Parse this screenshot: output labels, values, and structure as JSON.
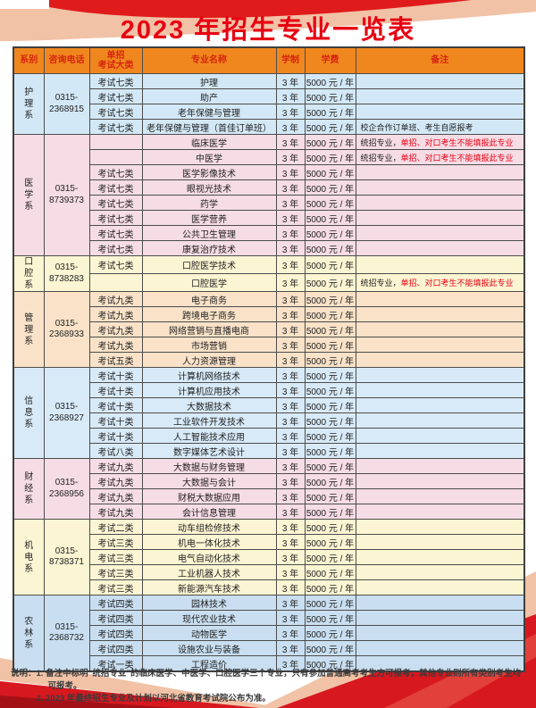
{
  "title": "2023 年招生专业一览表",
  "colors": {
    "accent_red": "#e60012",
    "header_orange": "#f0871e",
    "header_text_red": "#d5250f",
    "salmon_deco": "#f1c2a6",
    "deco_red": "#d7181f"
  },
  "table": {
    "headers": {
      "dept": "系别",
      "phone": "咨询电话",
      "exam_line1": "单招",
      "exam_line2": "考试大类",
      "major": "专业名称",
      "years": "学制",
      "fee": "学费",
      "remark": "备注"
    },
    "sections": [
      {
        "dept": "护理系",
        "phone": "0315-2368915",
        "color": "#d3e8f6",
        "rows": [
          {
            "exam": "考试七类",
            "major": "护理",
            "years": "3 年",
            "fee": "5000 元 / 年",
            "remark": "",
            "remark_red": ""
          },
          {
            "exam": "考试七类",
            "major": "助产",
            "years": "3 年",
            "fee": "5000 元 / 年",
            "remark": "",
            "remark_red": ""
          },
          {
            "exam": "考试七类",
            "major": "老年保健与管理",
            "years": "3 年",
            "fee": "5000 元 / 年",
            "remark": "",
            "remark_red": ""
          },
          {
            "exam": "考试七类",
            "major": "老年保健与管理（首佳订单班）",
            "years": "3 年",
            "fee": "5000 元 / 年",
            "remark": "校企合作订单班、考生自愿报考",
            "remark_red": ""
          }
        ]
      },
      {
        "dept": "医学系",
        "phone": "0315-8739373",
        "color": "#f6dce5",
        "rows": [
          {
            "exam": "",
            "major": "临床医学",
            "years": "3 年",
            "fee": "5000 元 / 年",
            "remark": "统招专业，",
            "remark_red": "单招、对口考生不能填报此专业"
          },
          {
            "exam": "",
            "major": "中医学",
            "years": "3 年",
            "fee": "5000 元 / 年",
            "remark": "统招专业，",
            "remark_red": "单招、对口考生不能填报此专业"
          },
          {
            "exam": "考试七类",
            "major": "医学影像技术",
            "years": "3 年",
            "fee": "5000 元 / 年",
            "remark": "",
            "remark_red": ""
          },
          {
            "exam": "考试七类",
            "major": "眼视光技术",
            "years": "3 年",
            "fee": "5000 元 / 年",
            "remark": "",
            "remark_red": ""
          },
          {
            "exam": "考试七类",
            "major": "药学",
            "years": "3 年",
            "fee": "5000 元 / 年",
            "remark": "",
            "remark_red": ""
          },
          {
            "exam": "考试七类",
            "major": "医学营养",
            "years": "3 年",
            "fee": "5000 元 / 年",
            "remark": "",
            "remark_red": ""
          },
          {
            "exam": "考试七类",
            "major": "公共卫生管理",
            "years": "3 年",
            "fee": "5000 元 / 年",
            "remark": "",
            "remark_red": ""
          },
          {
            "exam": "考试七类",
            "major": "康复治疗技术",
            "years": "3 年",
            "fee": "5000 元 / 年",
            "remark": "",
            "remark_red": ""
          }
        ]
      },
      {
        "dept": "口腔系",
        "phone": "0315-8738283",
        "color": "#fcf5d3",
        "rows": [
          {
            "exam": "考试七类",
            "major": "口腔医学技术",
            "years": "3 年",
            "fee": "5000 元 / 年",
            "remark": "",
            "remark_red": ""
          },
          {
            "exam": "",
            "major": "口腔医学",
            "years": "3 年",
            "fee": "5000 元 / 年",
            "remark": "统招专业，",
            "remark_red": "单招、对口考生不能填报此专业"
          }
        ]
      },
      {
        "dept": "管理系",
        "phone": "0315-2368933",
        "color": "#f9e2c8",
        "rows": [
          {
            "exam": "考试九类",
            "major": "电子商务",
            "years": "3 年",
            "fee": "5000 元 / 年",
            "remark": "",
            "remark_red": ""
          },
          {
            "exam": "考试九类",
            "major": "跨境电子商务",
            "years": "3 年",
            "fee": "5000 元 / 年",
            "remark": "",
            "remark_red": ""
          },
          {
            "exam": "考试九类",
            "major": "网络营销与直播电商",
            "years": "3 年",
            "fee": "5000 元 / 年",
            "remark": "",
            "remark_red": ""
          },
          {
            "exam": "考试九类",
            "major": "市场营销",
            "years": "3 年",
            "fee": "5000 元 / 年",
            "remark": "",
            "remark_red": ""
          },
          {
            "exam": "考试五类",
            "major": "人力资源管理",
            "years": "3 年",
            "fee": "5000 元 / 年",
            "remark": "",
            "remark_red": ""
          }
        ]
      },
      {
        "dept": "信息系",
        "phone": "0315-2368927",
        "color": "#d8eaf8",
        "rows": [
          {
            "exam": "考试十类",
            "major": "计算机网络技术",
            "years": "3 年",
            "fee": "5000 元 / 年",
            "remark": "",
            "remark_red": ""
          },
          {
            "exam": "考试十类",
            "major": "计算机应用技术",
            "years": "3 年",
            "fee": "5000 元 / 年",
            "remark": "",
            "remark_red": ""
          },
          {
            "exam": "考试十类",
            "major": "大数据技术",
            "years": "3 年",
            "fee": "5000 元 / 年",
            "remark": "",
            "remark_red": ""
          },
          {
            "exam": "考试十类",
            "major": "工业软件开发技术",
            "years": "3 年",
            "fee": "5000 元 / 年",
            "remark": "",
            "remark_red": ""
          },
          {
            "exam": "考试十类",
            "major": "人工智能技术应用",
            "years": "3 年",
            "fee": "5000 元 / 年",
            "remark": "",
            "remark_red": ""
          },
          {
            "exam": "考试八类",
            "major": "数字媒体艺术设计",
            "years": "3 年",
            "fee": "5000 元 / 年",
            "remark": "",
            "remark_red": ""
          }
        ]
      },
      {
        "dept": "财经系",
        "phone": "0315-2368956",
        "color": "#f6dce5",
        "rows": [
          {
            "exam": "考试九类",
            "major": "大数据与财务管理",
            "years": "3 年",
            "fee": "5000 元 / 年",
            "remark": "",
            "remark_red": ""
          },
          {
            "exam": "考试九类",
            "major": "大数据与会计",
            "years": "3 年",
            "fee": "5000 元 / 年",
            "remark": "",
            "remark_red": ""
          },
          {
            "exam": "考试九类",
            "major": "财税大数据应用",
            "years": "3 年",
            "fee": "5000 元 / 年",
            "remark": "",
            "remark_red": ""
          },
          {
            "exam": "考试九类",
            "major": "会计信息管理",
            "years": "3 年",
            "fee": "5000 元 / 年",
            "remark": "",
            "remark_red": ""
          }
        ]
      },
      {
        "dept": "机电系",
        "phone": "0315-8738371",
        "color": "#fcf5d3",
        "rows": [
          {
            "exam": "考试二类",
            "major": "动车组检修技术",
            "years": "3 年",
            "fee": "5000 元 / 年",
            "remark": "",
            "remark_red": ""
          },
          {
            "exam": "考试三类",
            "major": "机电一体化技术",
            "years": "3 年",
            "fee": "5000 元 / 年",
            "remark": "",
            "remark_red": ""
          },
          {
            "exam": "考试三类",
            "major": "电气自动化技术",
            "years": "3 年",
            "fee": "5000 元 / 年",
            "remark": "",
            "remark_red": ""
          },
          {
            "exam": "考试三类",
            "major": "工业机器人技术",
            "years": "3 年",
            "fee": "5000 元 / 年",
            "remark": "",
            "remark_red": ""
          },
          {
            "exam": "考试三类",
            "major": "新能源汽车技术",
            "years": "3 年",
            "fee": "5000 元 / 年",
            "remark": "",
            "remark_red": ""
          }
        ]
      },
      {
        "dept": "农林系",
        "phone": "0315-2368732",
        "color": "#c9dff1",
        "rows": [
          {
            "exam": "考试四类",
            "major": "园林技术",
            "years": "3 年",
            "fee": "5000 元 / 年",
            "remark": "",
            "remark_red": ""
          },
          {
            "exam": "考试四类",
            "major": "现代农业技术",
            "years": "3 年",
            "fee": "5000 元 / 年",
            "remark": "",
            "remark_red": ""
          },
          {
            "exam": "考试四类",
            "major": "动物医学",
            "years": "3 年",
            "fee": "5000 元 / 年",
            "remark": "",
            "remark_red": ""
          },
          {
            "exam": "考试四类",
            "major": "设施农业与装备",
            "years": "3 年",
            "fee": "5000 元 / 年",
            "remark": "",
            "remark_red": ""
          },
          {
            "exam": "考试一类",
            "major": "工程造价",
            "years": "3 年",
            "fee": "5000 元 / 年",
            "remark": "",
            "remark_red": ""
          }
        ]
      }
    ]
  },
  "notes": {
    "label": "说明：",
    "items": [
      "1. 备注中标明“统招专业”的临床医学、中医学、口腔医学三个专业，只有参加普通高考考生方可报考，其他专业则所有类别考生均可报考。",
      "2. 2023 年最终招生专业及计划以河北省教育考试院公布为准。"
    ]
  }
}
